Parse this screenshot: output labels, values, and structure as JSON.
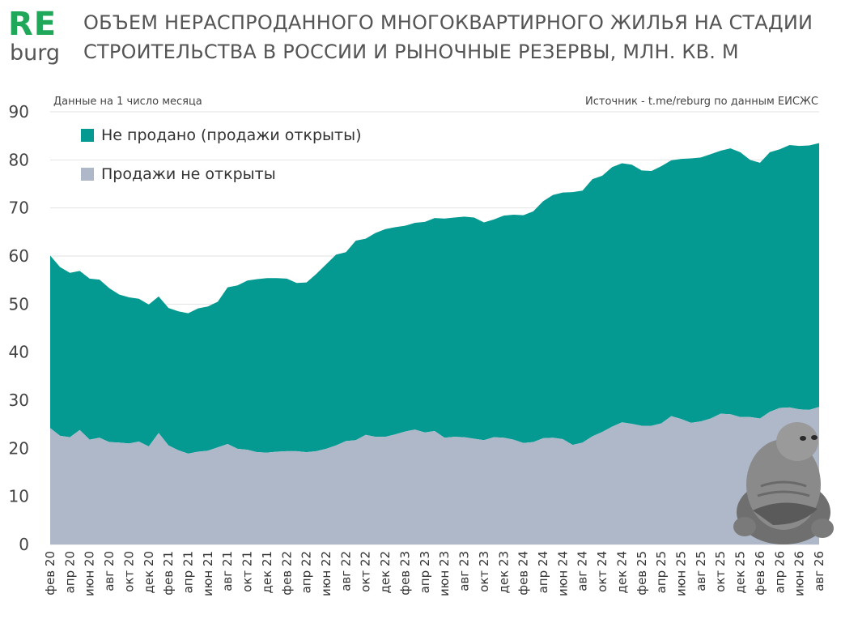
{
  "logo": {
    "top": "RE",
    "bottom": "burg"
  },
  "header": {
    "title": "ОБЪЕМ НЕРАСПРОДАННОГО МНОГОКВАРТИРНОГО ЖИЛЬЯ НА СТАДИИ СТРОИТЕЛЬСТВА В РОССИИ И РЫНОЧНЫЕ РЕЗЕРВЫ, МЛН. КВ. М",
    "note_left": "Данные на 1 число месяца",
    "note_right": "Источник - t.me/reburg по данным ЕИСЖС"
  },
  "chart_data": {
    "type": "area",
    "stacked": true,
    "title": "ОБЪЕМ НЕРАСПРОДАННОГО МНОГОКВАРТИРНОГО ЖИЛЬЯ НА СТАДИИ СТРОИТЕЛЬСТВА В РОССИИ И РЫНОЧНЫЕ РЕЗЕРВЫ, МЛН. КВ. М",
    "ylim": [
      0,
      90
    ],
    "yticks": [
      0,
      10,
      20,
      30,
      40,
      50,
      60,
      70,
      80,
      90
    ],
    "grid": true,
    "legend_position": "top-left",
    "colors": {
      "not_opened": "#aeb8c8",
      "open": "#049a92"
    },
    "legend": [
      {
        "key": "open",
        "label": "Не продано (продажи открыты)",
        "color": "#049a92"
      },
      {
        "key": "not_opened",
        "label": "Продажи не открыты",
        "color": "#aeb8c8"
      }
    ],
    "x_tick_labels": [
      "фев 20",
      "апр 20",
      "июн 20",
      "авг 20",
      "окт 20",
      "дек 20",
      "фев 21",
      "апр 21",
      "июн 21",
      "авг 21",
      "окт 21",
      "дек 21",
      "фев 22",
      "апр 22",
      "июн 22",
      "авг 22",
      "окт 22",
      "дек 22",
      "фев 23",
      "апр 23",
      "июн 23",
      "авг 23",
      "окт 23",
      "дек 23",
      "фев 24",
      "апр 24",
      "июн 24",
      "авг 24",
      "окт 24",
      "дек 24",
      "фев 25",
      "апр 25",
      "июн 25",
      "авг 25",
      "окт 25",
      "дек 25",
      "фев 26",
      "апр 26",
      "июн 26",
      "авг 26"
    ],
    "series": [
      {
        "key": "not_opened",
        "name": "Продажи не открыты",
        "values": [
          24.2,
          22.6,
          22.3,
          23.8,
          21.8,
          22.2,
          21.3,
          21.2,
          21.0,
          21.4,
          20.4,
          23.2,
          20.6,
          19.6,
          18.9,
          19.3,
          19.5,
          20.2,
          20.9,
          19.9,
          19.7,
          19.2,
          19.1,
          19.3,
          19.4,
          19.4,
          19.2,
          19.4,
          19.9,
          20.6,
          21.5,
          21.7,
          22.8,
          22.4,
          22.4,
          22.9,
          23.5,
          23.9,
          23.3,
          23.6,
          22.2,
          22.4,
          22.3,
          22.0,
          21.7,
          22.3,
          22.2,
          21.8,
          21.1,
          21.3,
          22.1,
          22.2,
          21.9,
          20.7,
          21.2,
          22.5,
          23.4,
          24.5,
          25.4,
          25.1,
          24.7,
          24.7,
          25.2,
          26.7,
          26.1,
          25.3,
          25.6,
          26.2,
          27.2,
          27.1,
          26.5,
          26.5,
          26.2,
          27.6,
          28.4,
          28.5,
          28.1,
          28.0,
          28.6
        ]
      },
      {
        "key": "open",
        "name": "Не продано (продажи открыты)",
        "values": [
          35.9,
          35.1,
          34.2,
          33.1,
          33.5,
          32.9,
          32.0,
          30.8,
          30.4,
          29.7,
          29.5,
          28.4,
          28.6,
          28.9,
          29.2,
          29.8,
          30.0,
          30.3,
          32.6,
          34.0,
          35.2,
          36.0,
          36.3,
          36.1,
          35.9,
          35.0,
          35.3,
          36.9,
          38.4,
          39.7,
          39.3,
          41.5,
          40.8,
          42.4,
          43.2,
          43.1,
          42.8,
          43.0,
          43.8,
          44.3,
          45.6,
          45.6,
          45.9,
          46.0,
          45.3,
          45.3,
          46.2,
          46.8,
          47.4,
          48.0,
          49.3,
          50.5,
          51.3,
          52.6,
          52.4,
          53.5,
          53.3,
          54.0,
          53.9,
          53.9,
          53.1,
          53.0,
          53.5,
          53.2,
          54.1,
          55.0,
          54.9,
          55.0,
          54.7,
          55.3,
          55.1,
          53.5,
          53.2,
          54.0,
          53.8,
          54.6,
          54.8,
          55.0,
          54.9
        ]
      }
    ]
  }
}
